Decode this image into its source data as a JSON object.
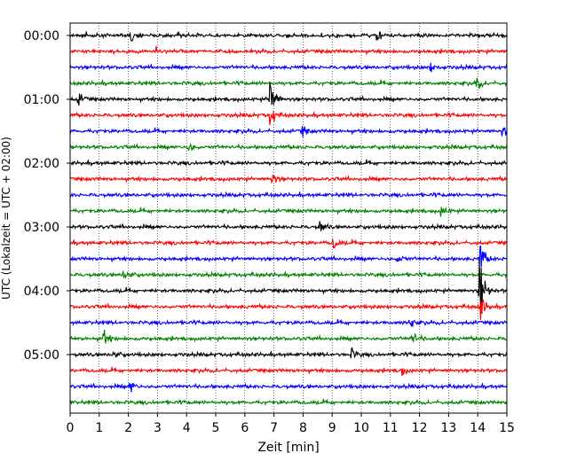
{
  "chart_data": {
    "type": "line",
    "title": "",
    "xlabel": "Zeit  [min]",
    "ylabel": "UTC (Lokalzeit = UTC + 02:00)",
    "xlim": [
      0,
      15
    ],
    "x_ticks": [
      "0",
      "1",
      "2",
      "3",
      "4",
      "5",
      "6",
      "7",
      "8",
      "9",
      "10",
      "11",
      "12",
      "13",
      "14",
      "15"
    ],
    "y_ticks": [
      "00:00",
      "01:00",
      "02:00",
      "03:00",
      "04:00",
      "05:00"
    ],
    "trace_interval_min": 15,
    "trace_count": 24,
    "trace_colors": [
      "#000000",
      "#ff0000",
      "#0000ff",
      "#008000"
    ],
    "grid_x": "dotted",
    "legend": "none",
    "events": [
      {
        "trace": 0,
        "minute": 2.1,
        "strength": 0.35
      },
      {
        "trace": 0,
        "minute": 10.6,
        "strength": 0.3
      },
      {
        "trace": 2,
        "minute": 12.4,
        "strength": 0.3
      },
      {
        "trace": 3,
        "minute": 14.0,
        "strength": 0.35
      },
      {
        "trace": 4,
        "minute": 6.9,
        "strength": 1.6
      },
      {
        "trace": 4,
        "minute": 0.3,
        "strength": 0.4
      },
      {
        "trace": 5,
        "minute": 6.9,
        "strength": 0.5
      },
      {
        "trace": 6,
        "minute": 8.0,
        "strength": 0.3
      },
      {
        "trace": 6,
        "minute": 14.9,
        "strength": 0.3
      },
      {
        "trace": 7,
        "minute": 4.1,
        "strength": 0.3
      },
      {
        "trace": 9,
        "minute": 7.0,
        "strength": 0.3
      },
      {
        "trace": 11,
        "minute": 12.8,
        "strength": 0.3
      },
      {
        "trace": 12,
        "minute": 8.6,
        "strength": 0.35
      },
      {
        "trace": 13,
        "minute": 9.1,
        "strength": 0.3
      },
      {
        "trace": 14,
        "minute": 11.3,
        "strength": 0.3
      },
      {
        "trace": 14,
        "minute": 14.1,
        "strength": 1.0
      },
      {
        "trace": 15,
        "minute": 1.9,
        "strength": 0.3
      },
      {
        "trace": 16,
        "minute": 14.1,
        "strength": 2.2
      },
      {
        "trace": 17,
        "minute": 14.1,
        "strength": 0.8
      },
      {
        "trace": 18,
        "minute": 11.7,
        "strength": 0.3
      },
      {
        "trace": 19,
        "minute": 1.2,
        "strength": 0.4
      },
      {
        "trace": 19,
        "minute": 11.8,
        "strength": 0.35
      },
      {
        "trace": 20,
        "minute": 1.5,
        "strength": 0.3
      },
      {
        "trace": 20,
        "minute": 9.7,
        "strength": 0.3
      },
      {
        "trace": 21,
        "minute": 11.4,
        "strength": 0.3
      },
      {
        "trace": 22,
        "minute": 2.1,
        "strength": 0.35
      }
    ]
  }
}
